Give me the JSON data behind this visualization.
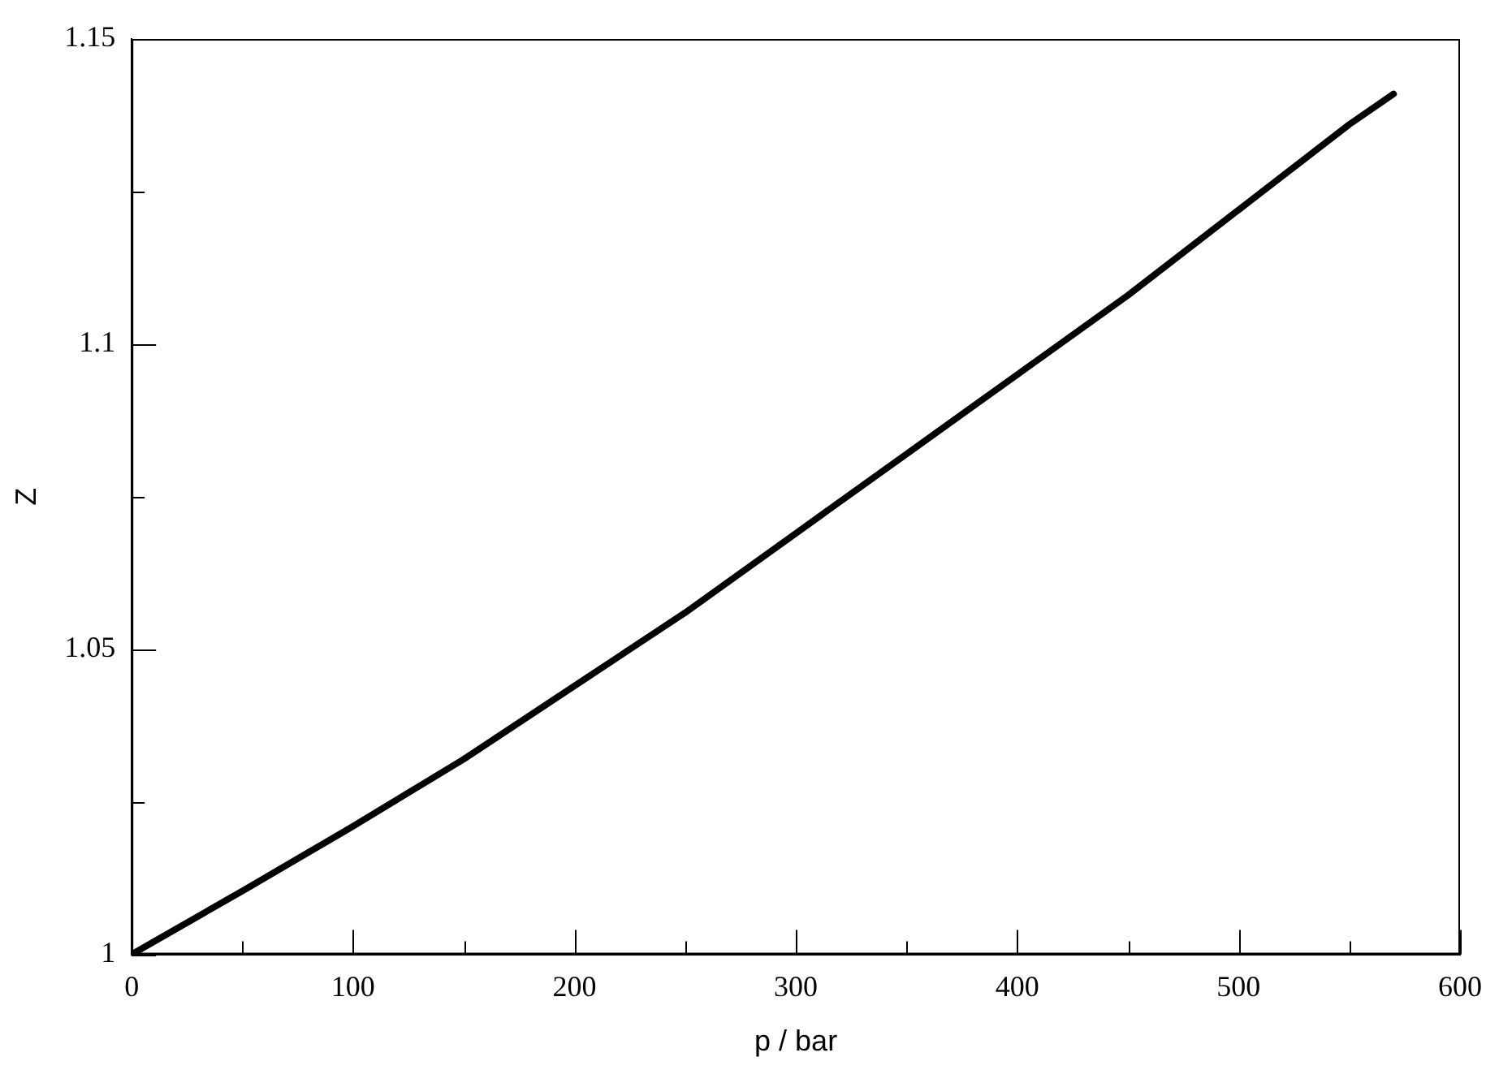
{
  "chart_data": {
    "type": "line",
    "xlabel": "p / bar",
    "ylabel": "Z",
    "x": [
      0,
      50,
      100,
      150,
      200,
      250,
      300,
      350,
      400,
      450,
      500,
      550,
      570
    ],
    "series": [
      {
        "color": "#000000",
        "values": [
          1.0,
          1.0104,
          1.021,
          1.032,
          1.044,
          1.056,
          1.069,
          1.082,
          1.095,
          1.108,
          1.122,
          1.136,
          1.141
        ]
      }
    ],
    "xlim": [
      0,
      600
    ],
    "ylim": [
      1,
      1.15
    ],
    "xticks": [
      0,
      {
        "value": 50,
        "label": null
      },
      100,
      {
        "value": 150,
        "label": null
      },
      200,
      {
        "value": 250,
        "label": null
      },
      300,
      {
        "value": 350,
        "label": null
      },
      400,
      {
        "value": 450,
        "label": null
      },
      500,
      {
        "value": 550,
        "label": null
      },
      600
    ],
    "yticks": [
      1,
      {
        "value": 1.025,
        "label": null
      },
      1.05,
      {
        "value": 1.075,
        "label": null
      },
      1.1,
      {
        "value": 1.125,
        "label": null
      },
      1.15
    ],
    "grid": false,
    "legend": false,
    "marker": "none",
    "line_style": "solid"
  }
}
